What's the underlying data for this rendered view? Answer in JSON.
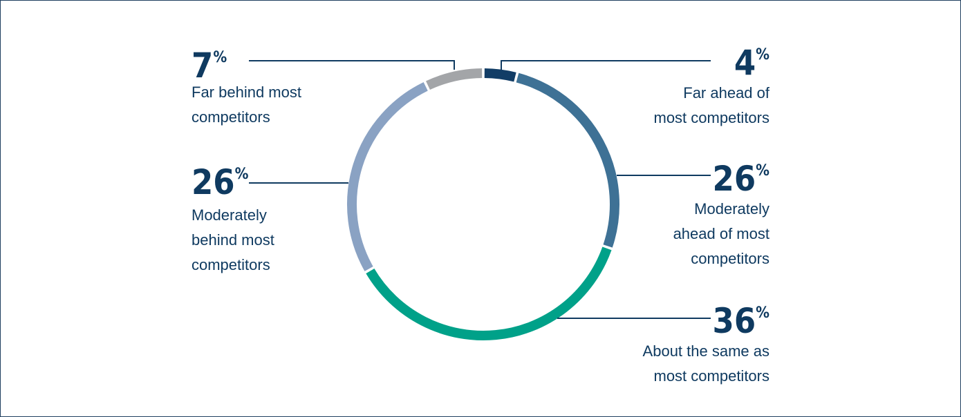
{
  "chart_data": {
    "type": "pie",
    "variant": "donut",
    "slices": [
      {
        "label": [
          "Far ahead of",
          "most competitors"
        ],
        "value": 4,
        "color": "#123d66"
      },
      {
        "label": [
          "Moderately",
          "ahead of most",
          "competitors"
        ],
        "value": 26,
        "color": "#3e7195"
      },
      {
        "label": [
          "About the same as",
          "most competitors"
        ],
        "value": 36,
        "color": "#00a189"
      },
      {
        "label": [
          "Moderately",
          "behind most",
          "competitors"
        ],
        "value": 26,
        "color": "#8aa2c3"
      },
      {
        "label": [
          "Far behind most",
          "competitors"
        ],
        "value": 7,
        "color": "#a3a5a8"
      }
    ],
    "value_suffix": "%",
    "legend": "none",
    "grid": false
  }
}
